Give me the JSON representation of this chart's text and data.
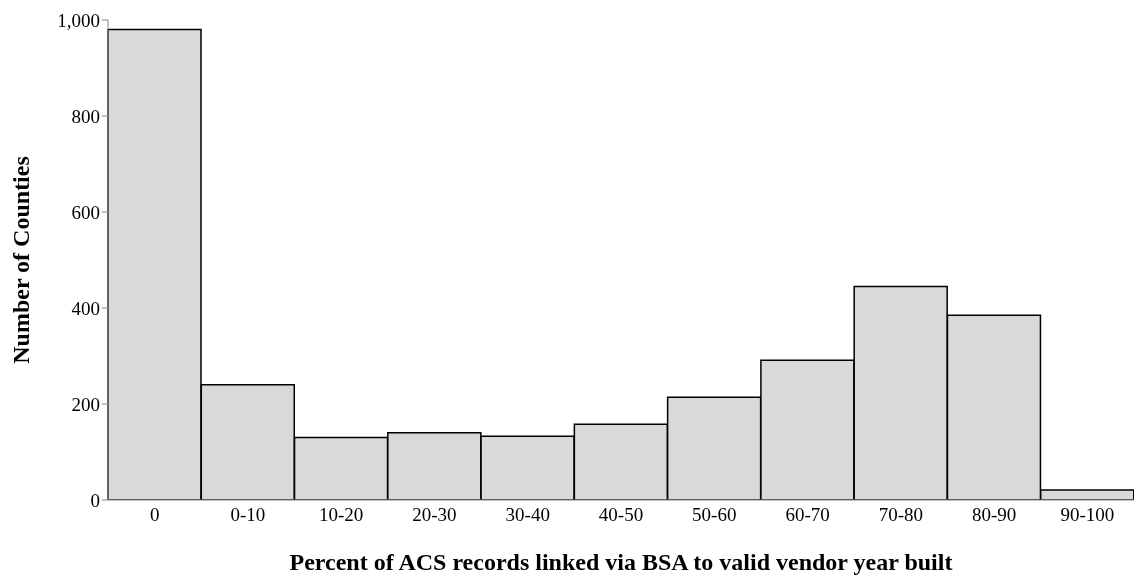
{
  "chart_data": {
    "type": "bar",
    "xlabel": "Percent of ACS records linked via BSA to valid vendor year built",
    "ylabel": "Number of Counties",
    "categories": [
      "0",
      "0-10",
      "10-20",
      "20-30",
      "30-40",
      "40-50",
      "50-60",
      "60-70",
      "70-80",
      "80-90",
      "90-100"
    ],
    "values": [
      980,
      240,
      130,
      140,
      133,
      158,
      214,
      291,
      445,
      385,
      21
    ],
    "color": "#d9d9d9",
    "ylim": [
      0,
      1000
    ],
    "yticks": [
      0,
      200,
      400,
      600,
      800,
      {
        "value": 1000,
        "label": "1,000"
      }
    ],
    "grid": false
  }
}
